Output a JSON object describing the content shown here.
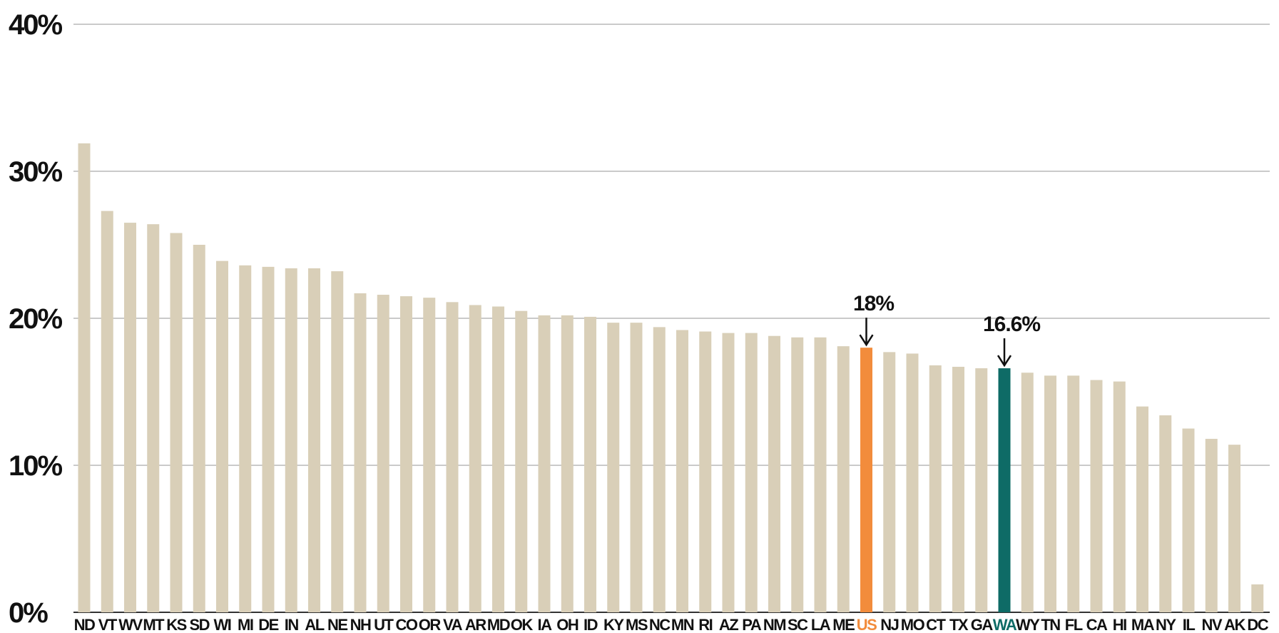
{
  "chart_data": {
    "type": "bar",
    "title": "",
    "xlabel": "",
    "ylabel": "",
    "ylim": [
      0,
      40
    ],
    "yticks": [
      "0%",
      "10%",
      "20%",
      "30%",
      "40%"
    ],
    "grid": true,
    "categories": [
      "ND",
      "VT",
      "WV",
      "MT",
      "KS",
      "SD",
      "WI",
      "MI",
      "DE",
      "IN",
      "AL",
      "NE",
      "NH",
      "UT",
      "CO",
      "OR",
      "VA",
      "AR",
      "MD",
      "OK",
      "IA",
      "OH",
      "ID",
      "KY",
      "MS",
      "NC",
      "MN",
      "RI",
      "AZ",
      "PA",
      "NM",
      "SC",
      "LA",
      "ME",
      "US",
      "NJ",
      "MO",
      "CT",
      "TX",
      "GA",
      "WA",
      "WY",
      "TN",
      "FL",
      "CA",
      "HI",
      "MA",
      "NY",
      "IL",
      "NV",
      "AK",
      "DC"
    ],
    "values": [
      31.9,
      27.3,
      26.5,
      26.4,
      25.8,
      25.0,
      23.9,
      23.6,
      23.5,
      23.4,
      23.4,
      23.2,
      21.7,
      21.6,
      21.5,
      21.4,
      21.1,
      20.9,
      20.8,
      20.5,
      20.2,
      20.2,
      20.1,
      19.7,
      19.7,
      19.4,
      19.2,
      19.1,
      19.0,
      19.0,
      18.8,
      18.7,
      18.7,
      18.1,
      18.0,
      17.7,
      17.6,
      16.8,
      16.7,
      16.6,
      16.6,
      16.3,
      16.1,
      16.1,
      15.8,
      15.7,
      14.0,
      13.4,
      12.5,
      11.8,
      11.4,
      1.9
    ],
    "highlights": {
      "US": {
        "label": "18%",
        "color": "#f28c3c"
      },
      "WA": {
        "label": "16.6%",
        "color": "#0e6b66"
      }
    },
    "colors": {
      "bar": "#d9cfb8",
      "grid": "#b8b8b8",
      "axis": "#333333",
      "text": "#111111"
    }
  }
}
